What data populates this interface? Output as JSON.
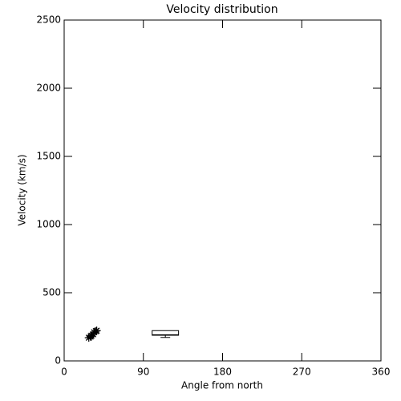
{
  "chart_data": {
    "type": "scatter",
    "title": "Velocity distribution",
    "xlabel": "Angle from north",
    "ylabel": "Velocity (km/s)",
    "x": [
      28,
      30,
      31,
      33,
      34,
      36,
      37
    ],
    "values": [
      170,
      178,
      185,
      195,
      210,
      218,
      222
    ],
    "color": "#000000",
    "marker": "asterisk",
    "box": {
      "x_range": [
        100,
        130
      ],
      "whisker_low": 172,
      "q1": 188,
      "median": 192,
      "q3": 222,
      "whisker_high": 222
    },
    "xlim": [
      0,
      360
    ],
    "xticks": [
      0,
      90,
      180,
      270,
      360
    ],
    "ylim": [
      0,
      2500
    ],
    "yticks": [
      0,
      500,
      1000,
      1500,
      2000,
      2500
    ]
  }
}
